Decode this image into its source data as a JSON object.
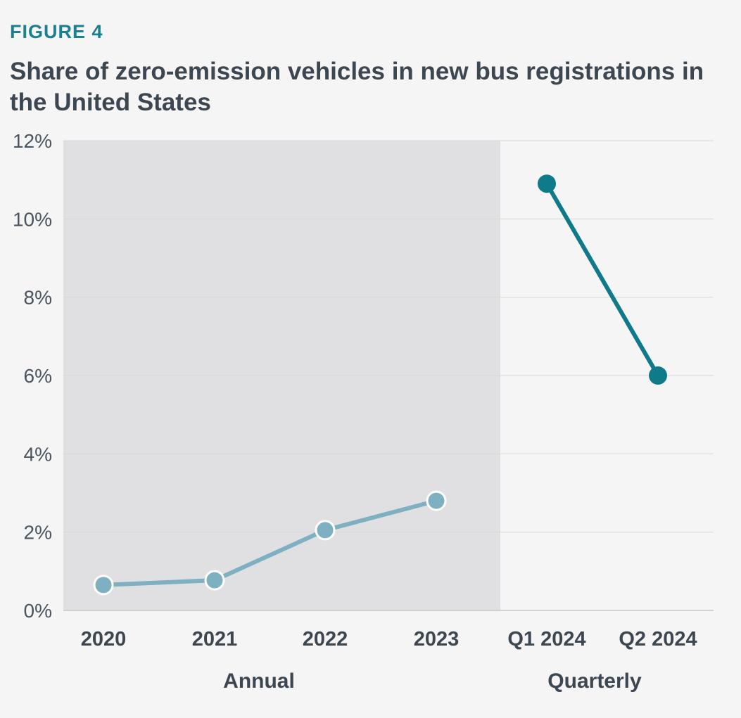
{
  "figure_label": "FIGURE 4",
  "chart_data": {
    "type": "line",
    "title": "Share of zero-emission vehicles in new bus registrations in the United States",
    "categories": [
      "2020",
      "2021",
      "2022",
      "2023",
      "Q1 2024",
      "Q2 2024"
    ],
    "ylim": [
      0,
      12
    ],
    "y_ticks": [
      "0%",
      "2%",
      "4%",
      "6%",
      "8%",
      "10%",
      "12%"
    ],
    "y_tick_values": [
      0,
      2,
      4,
      6,
      8,
      10,
      12
    ],
    "grid": true,
    "groups": [
      {
        "label": "Annual",
        "categories": [
          "2020",
          "2021",
          "2022",
          "2023"
        ],
        "shaded": true
      },
      {
        "label": "Quarterly",
        "categories": [
          "Q1 2024",
          "Q2 2024"
        ],
        "shaded": false
      }
    ],
    "series": [
      {
        "group": "Annual",
        "x": [
          "2020",
          "2021",
          "2022",
          "2023"
        ],
        "values": [
          0.65,
          0.77,
          2.05,
          2.8
        ],
        "color": "#7fb0c2"
      },
      {
        "group": "Quarterly",
        "x": [
          "Q1 2024",
          "Q2 2024"
        ],
        "values": [
          10.9,
          6.0
        ],
        "color": "#0f7a8a"
      }
    ],
    "colors": {
      "annual_shade": "#e0e0e3",
      "gridline": "#d8d8d8",
      "axis": "#c8c8c8"
    }
  }
}
